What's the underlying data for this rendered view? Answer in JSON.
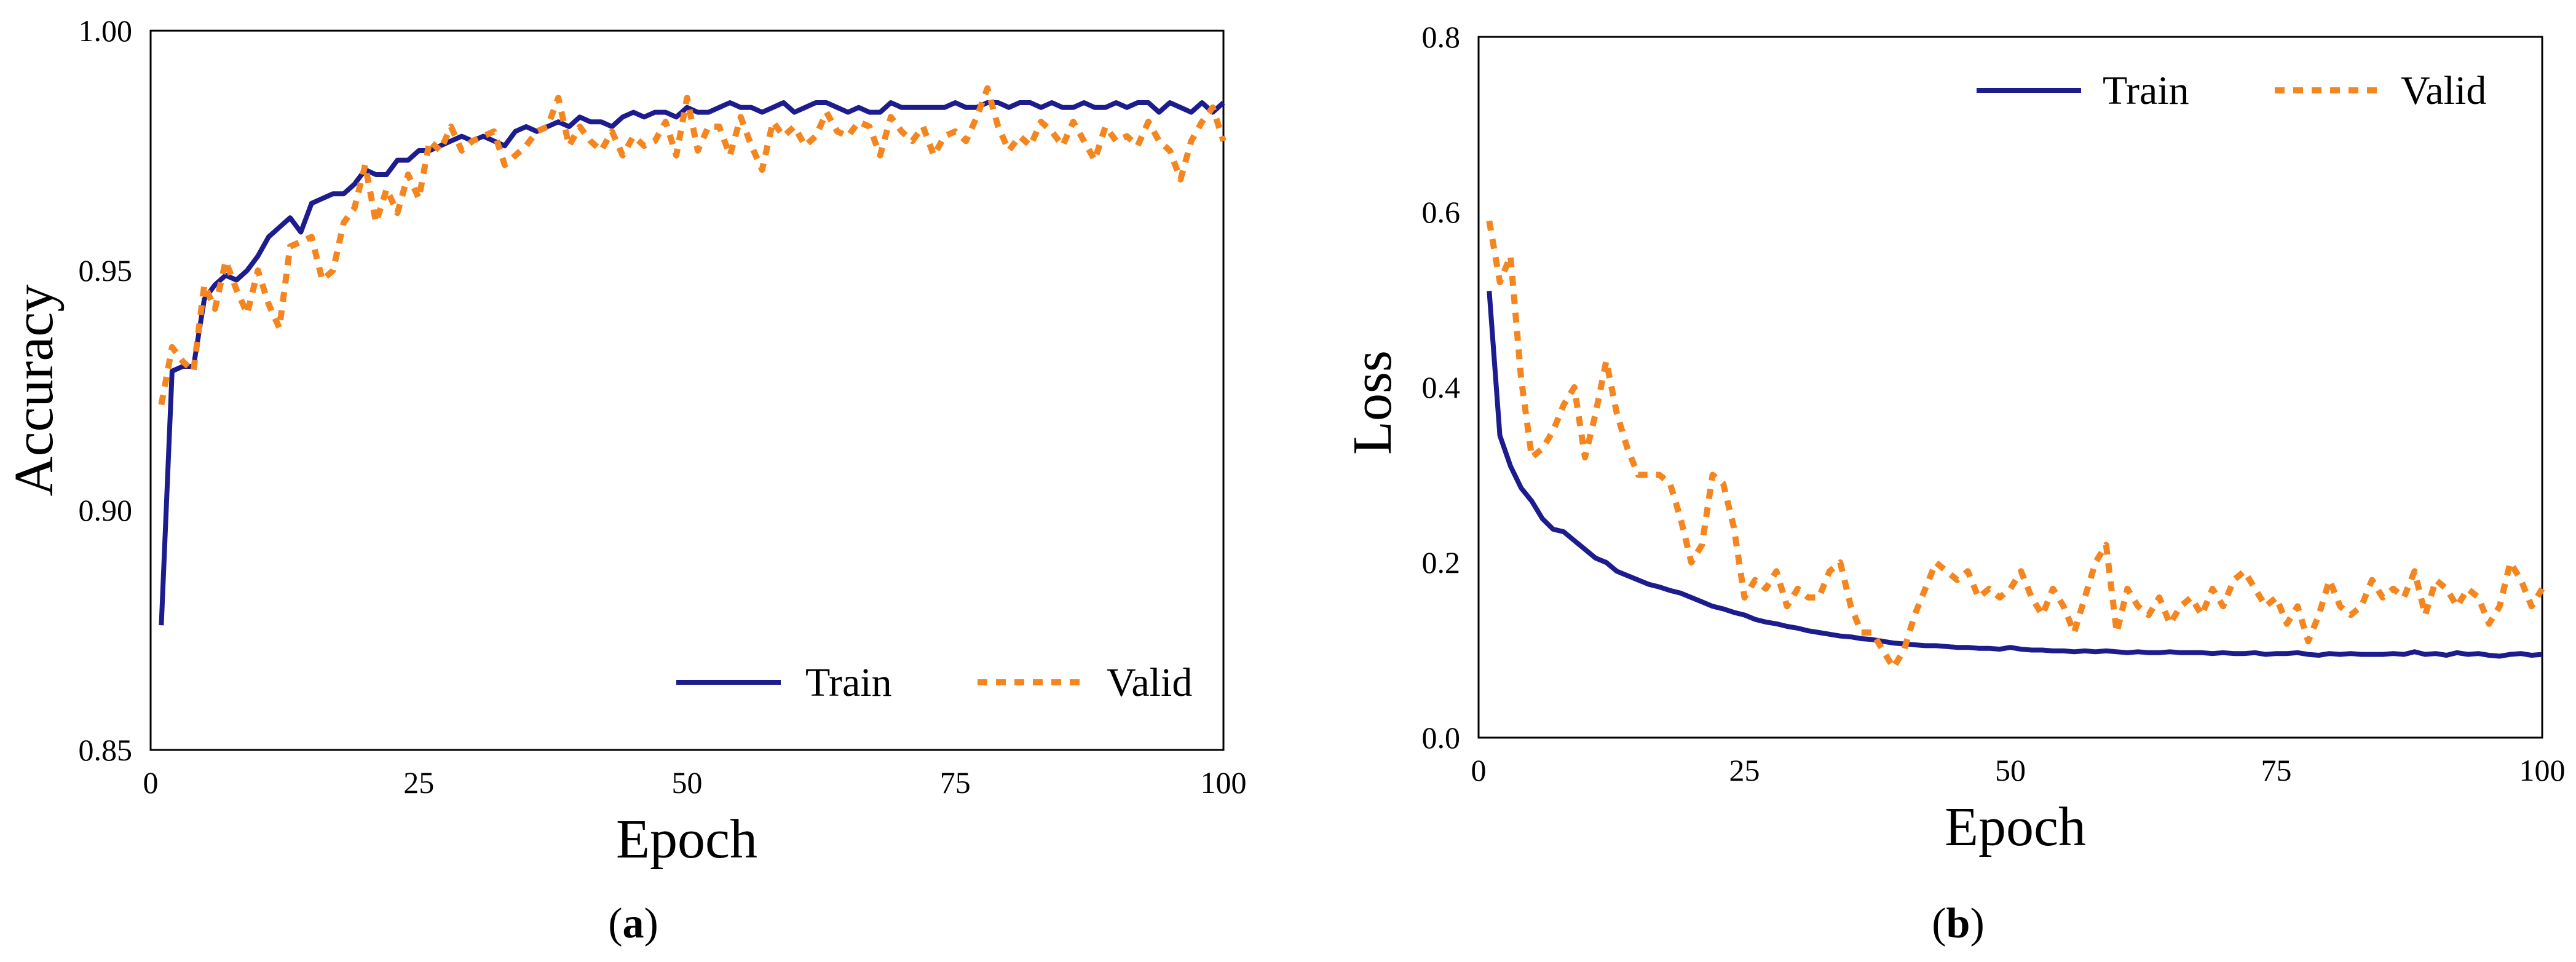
{
  "chart_data": [
    {
      "type": "line",
      "panel": "a",
      "caption_open": "(",
      "caption_letter": "a",
      "caption_close": ")",
      "title": "",
      "xlabel": "Epoch",
      "ylabel": "Accuracy",
      "xlim": [
        0,
        100
      ],
      "ylim": [
        0.85,
        1.0
      ],
      "xticks": [
        0,
        25,
        50,
        75,
        100
      ],
      "xtick_labels": [
        "0",
        "25",
        "50",
        "75",
        "100"
      ],
      "yticks": [
        0.85,
        0.9,
        0.95,
        1.0
      ],
      "ytick_labels": [
        "0.85",
        "0.90",
        "0.95",
        "1.00"
      ],
      "legend_position": "lower-right",
      "x": [
        1,
        2,
        3,
        4,
        5,
        6,
        7,
        8,
        9,
        10,
        11,
        12,
        13,
        14,
        15,
        16,
        17,
        18,
        19,
        20,
        21,
        22,
        23,
        24,
        25,
        26,
        27,
        28,
        29,
        30,
        31,
        32,
        33,
        34,
        35,
        36,
        37,
        38,
        39,
        40,
        41,
        42,
        43,
        44,
        45,
        46,
        47,
        48,
        49,
        50,
        51,
        52,
        53,
        54,
        55,
        56,
        57,
        58,
        59,
        60,
        61,
        62,
        63,
        64,
        65,
        66,
        67,
        68,
        69,
        70,
        71,
        72,
        73,
        74,
        75,
        76,
        77,
        78,
        79,
        80,
        81,
        82,
        83,
        84,
        85,
        86,
        87,
        88,
        89,
        90,
        91,
        92,
        93,
        94,
        95,
        96,
        97,
        98,
        99,
        100
      ],
      "series": [
        {
          "name": "Train",
          "color": "#1c1c8f",
          "style": "solid",
          "values": [
            0.876,
            0.929,
            0.93,
            0.93,
            0.944,
            0.947,
            0.949,
            0.948,
            0.95,
            0.953,
            0.957,
            0.959,
            0.961,
            0.958,
            0.964,
            0.965,
            0.966,
            0.966,
            0.968,
            0.971,
            0.97,
            0.97,
            0.973,
            0.973,
            0.975,
            0.975,
            0.976,
            0.977,
            0.978,
            0.977,
            0.978,
            0.977,
            0.976,
            0.979,
            0.98,
            0.979,
            0.98,
            0.981,
            0.98,
            0.982,
            0.981,
            0.981,
            0.98,
            0.982,
            0.983,
            0.982,
            0.983,
            0.983,
            0.982,
            0.984,
            0.983,
            0.983,
            0.984,
            0.985,
            0.984,
            0.984,
            0.983,
            0.984,
            0.985,
            0.983,
            0.984,
            0.985,
            0.985,
            0.984,
            0.983,
            0.984,
            0.983,
            0.983,
            0.985,
            0.984,
            0.984,
            0.984,
            0.984,
            0.984,
            0.985,
            0.984,
            0.984,
            0.985,
            0.985,
            0.984,
            0.985,
            0.985,
            0.984,
            0.985,
            0.984,
            0.984,
            0.985,
            0.984,
            0.984,
            0.985,
            0.984,
            0.985,
            0.985,
            0.983,
            0.985,
            0.984,
            0.983,
            0.985,
            0.983,
            0.985
          ]
        },
        {
          "name": "Valid",
          "color": "#f5861f",
          "style": "dotted",
          "values": [
            0.922,
            0.934,
            0.931,
            0.929,
            0.947,
            0.942,
            0.952,
            0.946,
            0.941,
            0.95,
            0.943,
            0.938,
            0.955,
            0.956,
            0.957,
            0.948,
            0.95,
            0.96,
            0.963,
            0.972,
            0.96,
            0.967,
            0.962,
            0.97,
            0.965,
            0.977,
            0.975,
            0.98,
            0.975,
            0.977,
            0.978,
            0.979,
            0.972,
            0.974,
            0.976,
            0.979,
            0.98,
            0.986,
            0.976,
            0.98,
            0.977,
            0.975,
            0.979,
            0.974,
            0.978,
            0.976,
            0.977,
            0.981,
            0.974,
            0.986,
            0.975,
            0.98,
            0.98,
            0.974,
            0.982,
            0.976,
            0.971,
            0.981,
            0.978,
            0.98,
            0.976,
            0.978,
            0.983,
            0.979,
            0.978,
            0.981,
            0.98,
            0.974,
            0.982,
            0.979,
            0.977,
            0.98,
            0.974,
            0.978,
            0.979,
            0.977,
            0.982,
            0.988,
            0.98,
            0.975,
            0.978,
            0.976,
            0.981,
            0.979,
            0.976,
            0.981,
            0.977,
            0.973,
            0.98,
            0.977,
            0.978,
            0.976,
            0.981,
            0.977,
            0.975,
            0.969,
            0.977,
            0.981,
            0.984,
            0.977
          ]
        }
      ]
    },
    {
      "type": "line",
      "panel": "b",
      "caption_open": "(",
      "caption_letter": "b",
      "caption_close": ")",
      "title": "",
      "xlabel": "Epoch",
      "ylabel": "Loss",
      "xlim": [
        0,
        100
      ],
      "ylim": [
        0.0,
        0.8
      ],
      "xticks": [
        0,
        25,
        50,
        75,
        100
      ],
      "xtick_labels": [
        "0",
        "25",
        "50",
        "75",
        "100"
      ],
      "yticks": [
        0.0,
        0.2,
        0.4,
        0.6,
        0.8
      ],
      "ytick_labels": [
        "0.0",
        "0.2",
        "0.4",
        "0.6",
        "0.8"
      ],
      "legend_position": "top-right",
      "x": [
        1,
        2,
        3,
        4,
        5,
        6,
        7,
        8,
        9,
        10,
        11,
        12,
        13,
        14,
        15,
        16,
        17,
        18,
        19,
        20,
        21,
        22,
        23,
        24,
        25,
        26,
        27,
        28,
        29,
        30,
        31,
        32,
        33,
        34,
        35,
        36,
        37,
        38,
        39,
        40,
        41,
        42,
        43,
        44,
        45,
        46,
        47,
        48,
        49,
        50,
        51,
        52,
        53,
        54,
        55,
        56,
        57,
        58,
        59,
        60,
        61,
        62,
        63,
        64,
        65,
        66,
        67,
        68,
        69,
        70,
        71,
        72,
        73,
        74,
        75,
        76,
        77,
        78,
        79,
        80,
        81,
        82,
        83,
        84,
        85,
        86,
        87,
        88,
        89,
        90,
        91,
        92,
        93,
        94,
        95,
        96,
        97,
        98,
        99,
        100
      ],
      "series": [
        {
          "name": "Train",
          "color": "#1c1c8f",
          "style": "solid",
          "values": [
            0.51,
            0.345,
            0.31,
            0.285,
            0.27,
            0.25,
            0.238,
            0.235,
            0.225,
            0.215,
            0.205,
            0.2,
            0.19,
            0.185,
            0.18,
            0.175,
            0.172,
            0.168,
            0.165,
            0.16,
            0.155,
            0.15,
            0.147,
            0.143,
            0.14,
            0.135,
            0.132,
            0.13,
            0.127,
            0.125,
            0.122,
            0.12,
            0.118,
            0.116,
            0.115,
            0.113,
            0.112,
            0.11,
            0.108,
            0.107,
            0.106,
            0.105,
            0.105,
            0.104,
            0.103,
            0.103,
            0.102,
            0.102,
            0.101,
            0.103,
            0.101,
            0.1,
            0.1,
            0.099,
            0.099,
            0.098,
            0.099,
            0.098,
            0.099,
            0.098,
            0.097,
            0.098,
            0.097,
            0.097,
            0.098,
            0.097,
            0.097,
            0.097,
            0.096,
            0.097,
            0.096,
            0.096,
            0.097,
            0.095,
            0.096,
            0.096,
            0.097,
            0.095,
            0.094,
            0.096,
            0.095,
            0.096,
            0.095,
            0.095,
            0.095,
            0.096,
            0.095,
            0.098,
            0.095,
            0.096,
            0.094,
            0.097,
            0.095,
            0.096,
            0.094,
            0.093,
            0.095,
            0.096,
            0.094,
            0.095
          ]
        },
        {
          "name": "Valid",
          "color": "#f5861f",
          "style": "dotted",
          "values": [
            0.59,
            0.52,
            0.55,
            0.41,
            0.32,
            0.33,
            0.35,
            0.38,
            0.4,
            0.32,
            0.37,
            0.43,
            0.37,
            0.33,
            0.3,
            0.3,
            0.3,
            0.29,
            0.25,
            0.2,
            0.22,
            0.3,
            0.29,
            0.24,
            0.16,
            0.18,
            0.17,
            0.19,
            0.15,
            0.17,
            0.16,
            0.16,
            0.19,
            0.2,
            0.15,
            0.12,
            0.12,
            0.1,
            0.08,
            0.1,
            0.14,
            0.17,
            0.2,
            0.19,
            0.18,
            0.19,
            0.16,
            0.17,
            0.16,
            0.17,
            0.19,
            0.16,
            0.14,
            0.17,
            0.15,
            0.12,
            0.16,
            0.2,
            0.22,
            0.12,
            0.17,
            0.15,
            0.14,
            0.16,
            0.13,
            0.15,
            0.16,
            0.14,
            0.17,
            0.15,
            0.18,
            0.19,
            0.17,
            0.15,
            0.16,
            0.13,
            0.15,
            0.11,
            0.14,
            0.18,
            0.15,
            0.14,
            0.15,
            0.18,
            0.16,
            0.17,
            0.16,
            0.19,
            0.14,
            0.18,
            0.17,
            0.15,
            0.17,
            0.16,
            0.13,
            0.15,
            0.2,
            0.18,
            0.15,
            0.17
          ]
        }
      ]
    }
  ]
}
